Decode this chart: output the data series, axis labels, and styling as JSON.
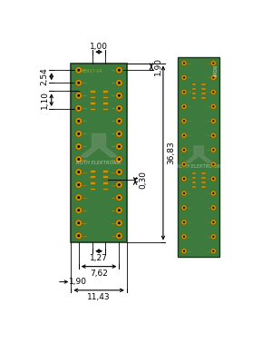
{
  "bg_color": "#ffffff",
  "board_color": "#3d7a3d",
  "board_dark": "#2a5a2a",
  "pad_color": "#c8960c",
  "pad_outline": "#7a5800",
  "trace_color": "#b08010",
  "dim_color": "#000000",
  "logo_color": "#aaaaaa",
  "n_rows": 14,
  "n_smd": 4,
  "labels": {
    "d100": "1,00",
    "d190t": "1,90",
    "d254": "2,54",
    "d110": "1,10",
    "d3683": "36,83",
    "d030": "0,30",
    "d127": "1,27",
    "d762": "7,62",
    "d190b": "1,90",
    "d1143": "11,43",
    "smd": "SMD6"
  }
}
